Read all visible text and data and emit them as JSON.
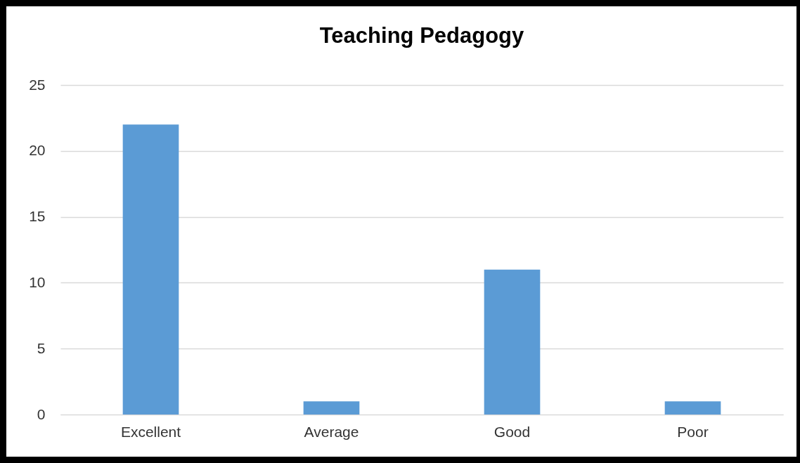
{
  "chart_data": {
    "type": "bar",
    "title": "Teaching Pedagogy",
    "categories": [
      "Excellent",
      "Average",
      "Good",
      "Poor"
    ],
    "values": [
      22,
      1,
      11,
      1
    ],
    "color": "#5b9bd5",
    "ylim": [
      0,
      25
    ],
    "yticks": [
      0,
      5,
      10,
      15,
      20,
      25
    ],
    "grid": "y"
  }
}
